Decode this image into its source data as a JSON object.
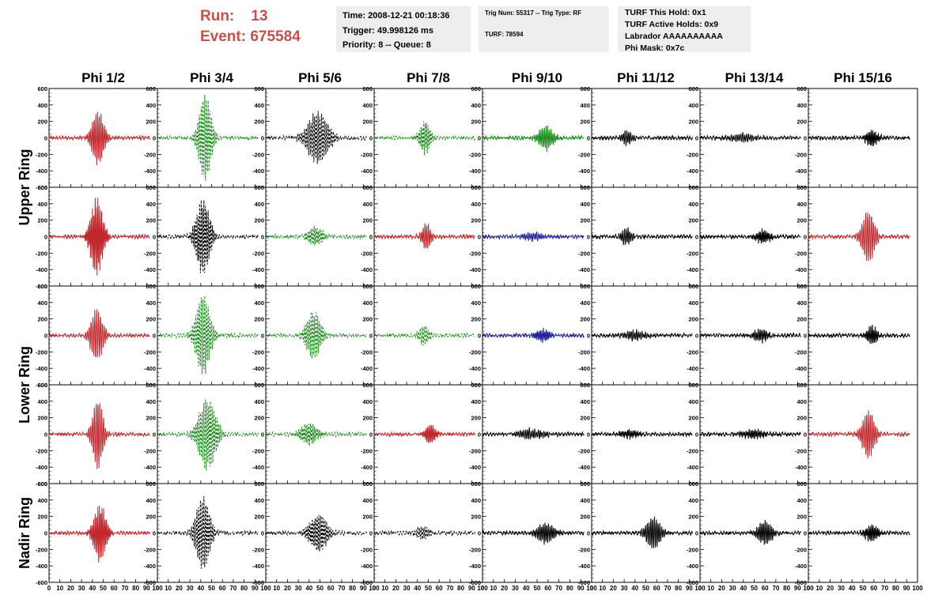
{
  "header": {
    "run_label": "Run:",
    "run_value": "13",
    "event_label": "Event:",
    "event_value": "675584",
    "time": "Time: 2008-12-21 00:18:36",
    "trigger": "Trigger: 49.998126 ms",
    "priority": "Priority: 8 -- Queue: 8",
    "trig_num": "Trig Num: 55317 -- Trig Type: RF",
    "turf": "TURF: 78594",
    "turf_hold": "TURF This Hold: 0x1",
    "turf_active": "TURF Active Holds: 0x9",
    "labrador": "Labrador AAAAAAAAAA",
    "phi_mask": "Phi Mask: 0x7c"
  },
  "colors": {
    "red": "#c0282d",
    "green": "#1a8a1a",
    "black": "#000000",
    "blue": "#1f1f9a",
    "header_red": "#c8504a"
  },
  "chart_data": {
    "type": "line",
    "columns": [
      "Phi 1/2",
      "Phi 3/4",
      "Phi 5/6",
      "Phi 7/8",
      "Phi 9/10",
      "Phi 11/12",
      "Phi 13/14",
      "Phi 15/16"
    ],
    "rows": [
      "Upper Ring",
      "Upper Ring",
      "Lower Ring",
      "Lower Ring",
      "Nadir Ring"
    ],
    "row_labels": [
      "Upper Ring",
      "Lower Ring",
      "Nadir Ring"
    ],
    "ylim": [
      -600,
      600
    ],
    "xlim": [
      0,
      100
    ],
    "yticks": [
      "600",
      "400",
      "200",
      "0",
      "-200",
      "-400",
      "-600"
    ],
    "xticks": [
      "0",
      "10",
      "20",
      "30",
      "40",
      "50",
      "60",
      "70",
      "80",
      "90",
      "100"
    ],
    "grid": false,
    "panels": [
      [
        {
          "color": "red",
          "dash": false,
          "amp": 330,
          "center": 45,
          "width": 7
        },
        {
          "color": "green",
          "dash": true,
          "amp": 530,
          "center": 44,
          "width": 7
        },
        {
          "color": "black",
          "dash": true,
          "amp": 320,
          "center": 48,
          "width": 12
        },
        {
          "color": "green",
          "dash": true,
          "amp": 200,
          "center": 47,
          "width": 6
        },
        {
          "color": "green",
          "dash": false,
          "amp": 150,
          "center": 58,
          "width": 8
        },
        {
          "color": "black",
          "dash": false,
          "amp": 90,
          "center": 33,
          "width": 6
        },
        {
          "color": "black",
          "dash": false,
          "amp": 50,
          "center": 40,
          "width": 14
        },
        {
          "color": "black",
          "dash": false,
          "amp": 100,
          "center": 58,
          "width": 7
        }
      ],
      [
        {
          "color": "red",
          "dash": false,
          "amp": 480,
          "center": 44,
          "width": 7
        },
        {
          "color": "black",
          "dash": true,
          "amp": 470,
          "center": 42,
          "width": 8
        },
        {
          "color": "green",
          "dash": true,
          "amp": 120,
          "center": 46,
          "width": 8
        },
        {
          "color": "red",
          "dash": false,
          "amp": 170,
          "center": 48,
          "width": 5
        },
        {
          "color": "blue",
          "dash": false,
          "amp": 50,
          "center": 45,
          "width": 12
        },
        {
          "color": "black",
          "dash": false,
          "amp": 100,
          "center": 32,
          "width": 6
        },
        {
          "color": "black",
          "dash": false,
          "amp": 80,
          "center": 58,
          "width": 8
        },
        {
          "color": "red",
          "dash": false,
          "amp": 320,
          "center": 55,
          "width": 7
        }
      ],
      [
        {
          "color": "red",
          "dash": false,
          "amp": 320,
          "center": 44,
          "width": 7
        },
        {
          "color": "green",
          "dash": true,
          "amp": 500,
          "center": 42,
          "width": 8
        },
        {
          "color": "green",
          "dash": true,
          "amp": 300,
          "center": 44,
          "width": 8
        },
        {
          "color": "green",
          "dash": true,
          "amp": 120,
          "center": 46,
          "width": 6
        },
        {
          "color": "blue",
          "dash": false,
          "amp": 80,
          "center": 55,
          "width": 8
        },
        {
          "color": "black",
          "dash": false,
          "amp": 60,
          "center": 40,
          "width": 12
        },
        {
          "color": "black",
          "dash": false,
          "amp": 80,
          "center": 56,
          "width": 8
        },
        {
          "color": "black",
          "dash": false,
          "amp": 120,
          "center": 58,
          "width": 6
        }
      ],
      [
        {
          "color": "red",
          "dash": false,
          "amp": 430,
          "center": 45,
          "width": 6
        },
        {
          "color": "green",
          "dash": true,
          "amp": 440,
          "center": 46,
          "width": 10
        },
        {
          "color": "green",
          "dash": true,
          "amp": 130,
          "center": 40,
          "width": 10
        },
        {
          "color": "red",
          "dash": false,
          "amp": 130,
          "center": 52,
          "width": 6
        },
        {
          "color": "black",
          "dash": false,
          "amp": 60,
          "center": 45,
          "width": 14
        },
        {
          "color": "black",
          "dash": false,
          "amp": 50,
          "center": 35,
          "width": 10
        },
        {
          "color": "black",
          "dash": false,
          "amp": 50,
          "center": 50,
          "width": 14
        },
        {
          "color": "red",
          "dash": false,
          "amp": 300,
          "center": 55,
          "width": 7
        }
      ],
      [
        {
          "color": "red",
          "dash": false,
          "amp": 360,
          "center": 47,
          "width": 7
        },
        {
          "color": "black",
          "dash": true,
          "amp": 450,
          "center": 42,
          "width": 8
        },
        {
          "color": "black",
          "dash": true,
          "amp": 240,
          "center": 48,
          "width": 10
        },
        {
          "color": "black",
          "dash": true,
          "amp": 80,
          "center": 45,
          "width": 8
        },
        {
          "color": "black",
          "dash": false,
          "amp": 120,
          "center": 58,
          "width": 10
        },
        {
          "color": "black",
          "dash": false,
          "amp": 200,
          "center": 57,
          "width": 8
        },
        {
          "color": "black",
          "dash": false,
          "amp": 150,
          "center": 60,
          "width": 8
        },
        {
          "color": "black",
          "dash": false,
          "amp": 100,
          "center": 58,
          "width": 8
        }
      ]
    ]
  }
}
